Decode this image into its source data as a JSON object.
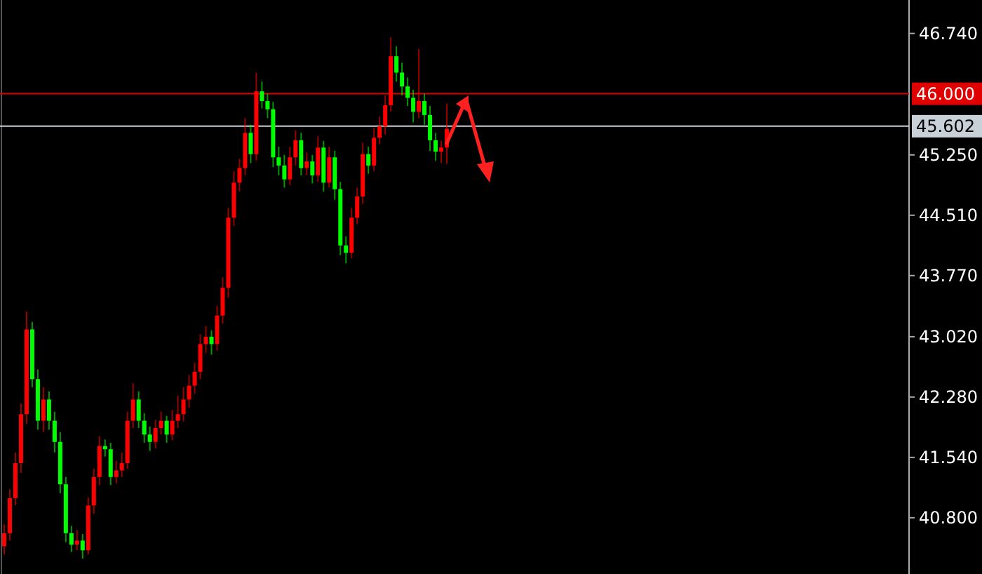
{
  "chart_data": {
    "type": "candlestick",
    "categories": [
      null,
      null,
      null,
      null,
      null,
      null,
      null,
      null,
      null,
      null,
      null,
      null,
      null,
      null,
      null,
      null,
      null,
      null,
      null,
      null,
      null,
      null,
      null,
      null,
      null,
      null,
      null,
      null,
      null,
      null,
      null,
      null,
      null,
      null,
      null,
      null,
      null,
      null,
      null,
      null,
      null,
      null,
      null,
      null,
      null,
      null,
      null,
      null,
      null,
      null,
      null,
      null,
      null,
      null,
      null,
      null,
      null,
      null,
      null,
      null,
      null,
      null,
      null,
      null,
      null,
      null,
      null,
      null,
      null,
      null,
      null,
      null,
      null,
      null,
      null,
      null,
      null,
      null,
      null,
      null,
      null,
      null,
      null,
      null,
      null,
      null,
      null,
      null,
      null,
      null,
      null,
      null,
      null,
      null,
      null,
      null,
      null,
      null,
      null,
      null,
      null,
      null,
      null,
      null,
      null,
      null,
      null,
      null,
      null,
      null,
      null,
      null,
      null,
      null,
      null,
      null,
      null,
      null,
      null,
      null,
      null,
      null,
      null,
      null,
      null,
      null,
      null,
      null,
      null,
      null,
      null,
      null,
      null,
      null,
      null,
      null,
      null,
      null,
      null,
      null,
      null,
      null,
      null,
      null,
      null,
      null,
      null,
      null,
      null,
      null,
      null,
      null,
      null,
      null,
      null,
      null,
      null,
      null,
      null,
      null,
      null,
      null
    ],
    "ohlc": [
      [
        40.45,
        40.72,
        40.35,
        40.61
      ],
      [
        40.61,
        41.15,
        40.52,
        41.04
      ],
      [
        41.04,
        41.6,
        40.95,
        41.47
      ],
      [
        41.47,
        42.2,
        41.35,
        42.07
      ],
      [
        42.07,
        43.33,
        41.95,
        43.11
      ],
      [
        43.11,
        43.2,
        42.4,
        42.5
      ],
      [
        42.5,
        42.62,
        41.88,
        41.99
      ],
      [
        41.99,
        42.4,
        41.85,
        42.25
      ],
      [
        42.25,
        42.35,
        41.88,
        41.99
      ],
      [
        41.99,
        42.1,
        41.6,
        41.73
      ],
      [
        41.73,
        41.85,
        41.1,
        41.21
      ],
      [
        41.21,
        41.3,
        40.5,
        40.61
      ],
      [
        40.61,
        40.7,
        40.38,
        40.47
      ],
      [
        40.47,
        40.65,
        40.4,
        40.52
      ],
      [
        40.52,
        40.6,
        40.3,
        40.4
      ],
      [
        40.4,
        41.05,
        40.35,
        40.95
      ],
      [
        40.95,
        41.4,
        40.85,
        41.3
      ],
      [
        41.3,
        41.8,
        41.2,
        41.68
      ],
      [
        41.68,
        41.76,
        41.55,
        41.64
      ],
      [
        41.64,
        41.72,
        41.2,
        41.3
      ],
      [
        41.3,
        41.5,
        41.22,
        41.38
      ],
      [
        41.38,
        41.6,
        41.3,
        41.47
      ],
      [
        41.47,
        42.1,
        41.4,
        41.99
      ],
      [
        41.99,
        42.45,
        41.9,
        42.25
      ],
      [
        42.25,
        42.35,
        41.9,
        41.99
      ],
      [
        41.99,
        42.08,
        41.72,
        41.82
      ],
      [
        41.82,
        41.92,
        41.62,
        41.73
      ],
      [
        41.73,
        42.0,
        41.65,
        41.9
      ],
      [
        41.9,
        42.1,
        41.82,
        41.99
      ],
      [
        41.99,
        42.05,
        41.72,
        41.82
      ],
      [
        41.82,
        42.12,
        41.75,
        41.99
      ],
      [
        41.99,
        42.3,
        41.9,
        42.07
      ],
      [
        42.07,
        42.4,
        41.98,
        42.25
      ],
      [
        42.25,
        42.55,
        42.15,
        42.42
      ],
      [
        42.42,
        42.7,
        42.32,
        42.59
      ],
      [
        42.59,
        43.05,
        42.5,
        42.93
      ],
      [
        42.93,
        43.15,
        42.82,
        43.02
      ],
      [
        43.02,
        43.1,
        42.8,
        42.93
      ],
      [
        42.93,
        43.4,
        42.85,
        43.28
      ],
      [
        43.28,
        43.75,
        43.18,
        43.62
      ],
      [
        43.62,
        44.6,
        43.5,
        44.48
      ],
      [
        44.48,
        45.05,
        44.38,
        44.91
      ],
      [
        44.91,
        45.2,
        44.8,
        45.09
      ],
      [
        45.09,
        45.7,
        45.0,
        45.52
      ],
      [
        45.52,
        45.62,
        45.15,
        45.26
      ],
      [
        45.26,
        46.26,
        45.18,
        46.03
      ],
      [
        46.03,
        46.15,
        45.82,
        45.91
      ],
      [
        45.91,
        46.0,
        45.7,
        45.81
      ],
      [
        45.81,
        45.9,
        45.1,
        45.22
      ],
      [
        45.22,
        45.35,
        45.0,
        45.12
      ],
      [
        45.12,
        45.25,
        44.85,
        44.95
      ],
      [
        44.95,
        45.35,
        44.88,
        45.22
      ],
      [
        45.22,
        45.55,
        45.12,
        45.43
      ],
      [
        45.43,
        45.52,
        45.0,
        45.09
      ],
      [
        45.09,
        45.28,
        45.0,
        45.17
      ],
      [
        45.17,
        45.25,
        44.9,
        45.0
      ],
      [
        45.0,
        45.48,
        44.92,
        45.34
      ],
      [
        45.34,
        45.42,
        44.8,
        44.91
      ],
      [
        44.91,
        45.35,
        44.85,
        45.22
      ],
      [
        45.22,
        45.3,
        44.7,
        44.83
      ],
      [
        44.83,
        44.92,
        44.02,
        44.14
      ],
      [
        44.14,
        44.25,
        43.92,
        44.05
      ],
      [
        44.05,
        44.6,
        43.98,
        44.48
      ],
      [
        44.48,
        44.85,
        44.4,
        44.74
      ],
      [
        44.74,
        45.4,
        44.65,
        45.26
      ],
      [
        45.26,
        45.35,
        45.02,
        45.12
      ],
      [
        45.12,
        45.58,
        45.05,
        45.46
      ],
      [
        45.46,
        45.72,
        45.38,
        45.6
      ],
      [
        45.6,
        45.98,
        45.5,
        45.86
      ],
      [
        45.86,
        46.69,
        45.78,
        46.46
      ],
      [
        46.46,
        46.58,
        46.15,
        46.26
      ],
      [
        46.26,
        46.38,
        45.98,
        46.09
      ],
      [
        46.09,
        46.2,
        45.85,
        45.95
      ],
      [
        45.95,
        46.05,
        45.65,
        45.78
      ],
      [
        45.78,
        46.55,
        45.7,
        45.91
      ],
      [
        45.91,
        46.0,
        45.62,
        45.74
      ],
      [
        45.74,
        45.85,
        45.3,
        45.43
      ],
      [
        45.43,
        45.52,
        45.18,
        45.29
      ],
      [
        45.29,
        45.42,
        45.15,
        45.34
      ],
      [
        45.34,
        45.88,
        45.14,
        45.57
      ],
      null,
      null,
      null,
      null,
      null,
      null,
      null,
      null,
      null,
      null,
      null,
      null,
      null,
      null,
      null,
      null,
      null,
      null,
      null,
      null,
      null,
      null,
      null,
      null,
      null,
      null,
      null,
      null,
      null,
      null,
      null,
      null,
      null,
      null,
      null,
      null,
      null,
      null,
      null,
      null,
      null,
      null,
      null,
      null,
      null,
      null,
      null,
      null,
      null,
      null,
      null,
      null,
      null,
      null,
      null,
      null,
      null,
      null,
      null,
      null,
      null,
      null,
      null,
      null,
      null,
      null,
      null,
      null,
      null,
      null,
      null,
      null,
      null,
      null,
      null,
      null,
      null,
      null,
      null,
      null,
      null,
      null
    ],
    "colors": [
      "#ff0000",
      "#ff0000",
      "#ff0000",
      "#ff0000",
      "#ff0000",
      "#00ff00",
      "#00ff00",
      "#ff0000",
      "#00ff00",
      "#00ff00",
      "#00ff00",
      "#00ff00",
      "#00ff00",
      "#ff0000",
      "#00ff00",
      "#ff0000",
      "#ff0000",
      "#ff0000",
      "#00ff00",
      "#00ff00",
      "#ff0000",
      "#ff0000",
      "#ff0000",
      "#ff0000",
      "#00ff00",
      "#00ff00",
      "#00ff00",
      "#ff0000",
      "#ff0000",
      "#00ff00",
      "#ff0000",
      "#ff0000",
      "#ff0000",
      "#ff0000",
      "#ff0000",
      "#ff0000",
      "#ff0000",
      "#00ff00",
      "#ff0000",
      "#ff0000",
      "#ff0000",
      "#ff0000",
      "#ff0000",
      "#ff0000",
      "#00ff00",
      "#ff0000",
      "#00ff00",
      "#00ff00",
      "#00ff00",
      "#00ff00",
      "#00ff00",
      "#ff0000",
      "#ff0000",
      "#00ff00",
      "#ff0000",
      "#00ff00",
      "#ff0000",
      "#00ff00",
      "#ff0000",
      "#00ff00",
      "#00ff00",
      "#00ff00",
      "#ff0000",
      "#ff0000",
      "#ff0000",
      "#00ff00",
      "#ff0000",
      "#ff0000",
      "#ff0000",
      "#ff0000",
      "#00ff00",
      "#00ff00",
      "#00ff00",
      "#00ff00",
      "#ff0000",
      "#00ff00",
      "#00ff00",
      "#00ff00",
      "#ff0000",
      "#ff0000",
      null,
      null,
      null,
      null,
      null,
      null,
      null,
      null,
      null,
      null,
      null,
      null,
      null,
      null,
      null,
      null,
      null,
      null,
      null,
      null,
      null,
      null,
      null,
      null,
      null,
      null,
      null,
      null,
      null,
      null,
      null,
      null,
      null,
      null,
      null,
      null,
      null,
      null,
      null,
      null,
      null,
      null,
      null,
      null,
      null,
      null,
      null,
      null,
      null,
      null,
      null,
      null,
      null,
      null,
      null,
      null,
      null,
      null,
      null,
      null,
      null,
      null,
      null,
      null,
      null,
      null,
      null,
      null,
      null,
      null,
      null,
      null,
      null,
      null,
      null,
      null,
      null,
      null,
      null,
      null,
      null,
      null
    ],
    "ylim": [
      40.11,
      47.15
    ],
    "yticks": [
      {
        "value": 40.8,
        "label": "40.800"
      },
      {
        "value": 41.54,
        "label": "41.540"
      },
      {
        "value": 42.28,
        "label": "42.280"
      },
      {
        "value": 43.02,
        "label": "43.020"
      },
      {
        "value": 43.77,
        "label": "43.770"
      },
      {
        "value": 44.51,
        "label": "44.510"
      },
      {
        "value": 45.25,
        "label": "45.250"
      },
      {
        "value": 46.74,
        "label": "46.740"
      }
    ],
    "ref_lines": [
      {
        "axis": "y",
        "value": 46.0,
        "label": "46.000",
        "color": "#e00000"
      },
      {
        "axis": "y",
        "value": 45.602,
        "label": "45.602",
        "color": "#c8d0d8"
      }
    ],
    "grid": false
  }
}
